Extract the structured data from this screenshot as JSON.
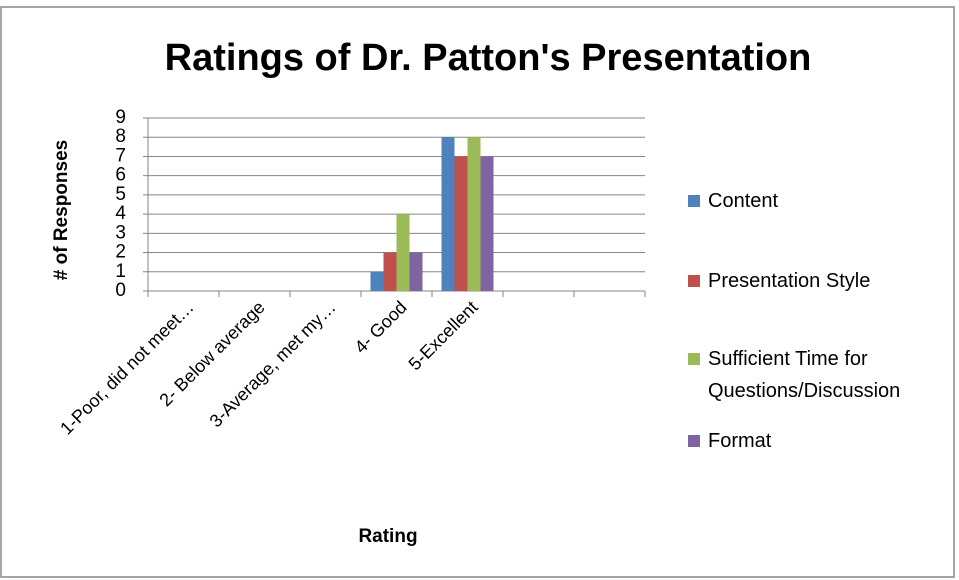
{
  "chart_data": {
    "type": "bar",
    "title": "Ratings of Dr. Patton's Presentation",
    "x_label": "Rating",
    "y_label": "# of Responses",
    "categories": [
      "1-Poor, did not meet…",
      "2- Below average",
      "3-Average, met my…",
      "4- Good",
      "5-Excellent",
      null,
      null
    ],
    "series": [
      {
        "name": "Content",
        "color": "#4f81bd",
        "values": [
          0,
          0,
          0,
          1,
          8,
          null,
          null
        ]
      },
      {
        "name": "Presentation Style",
        "color": "#c0504d",
        "values": [
          0,
          0,
          0,
          2,
          7,
          null,
          null
        ]
      },
      {
        "name": "Sufficient Time for Questions/Discussion",
        "color": "#9bbb59",
        "values": [
          0,
          0,
          0,
          4,
          8,
          null,
          null
        ]
      },
      {
        "name": "Format",
        "color": "#8064a2",
        "values": [
          0,
          0,
          0,
          2,
          7,
          null,
          null
        ]
      }
    ],
    "ylim": [
      0,
      9
    ],
    "yticks": [
      0,
      1,
      2,
      3,
      4,
      5,
      6,
      7,
      8,
      9
    ],
    "grid": true,
    "legend": "right"
  }
}
